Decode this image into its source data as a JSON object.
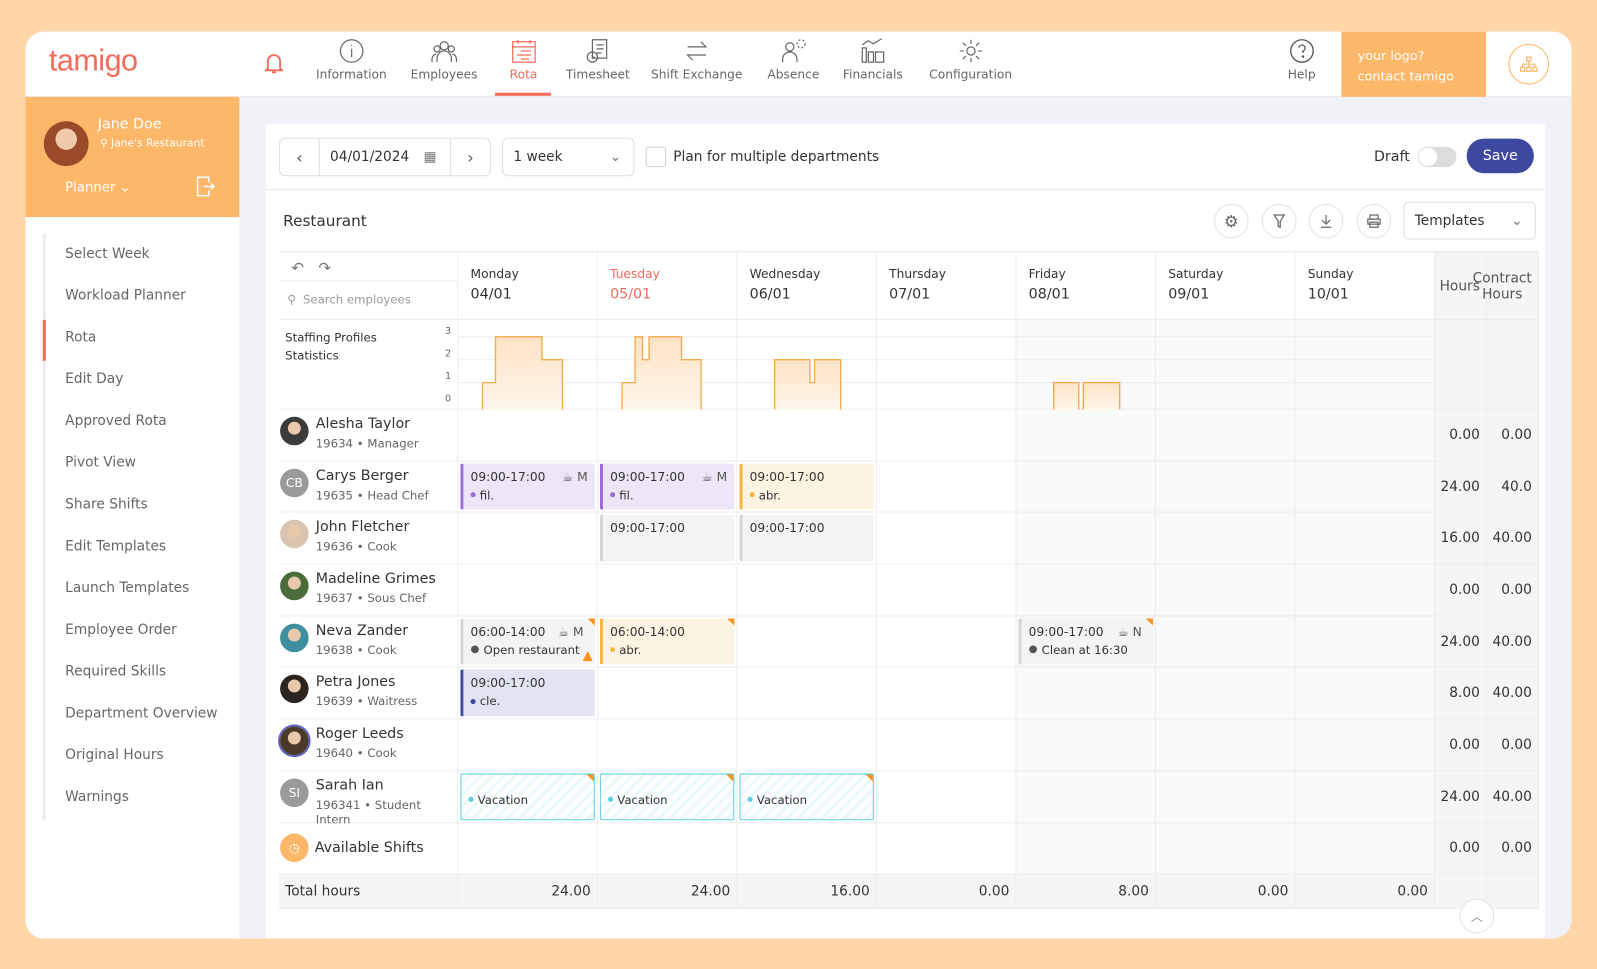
{
  "app": {
    "logo": "tamigo",
    "logo_box": [
      "your logo?",
      "contact tamigo"
    ]
  },
  "nav": [
    {
      "label": "Information",
      "icon": "info-icon"
    },
    {
      "label": "Employees",
      "icon": "employees-icon"
    },
    {
      "label": "Rota",
      "icon": "rota-icon",
      "active": true
    },
    {
      "label": "Timesheet",
      "icon": "timesheet-icon"
    },
    {
      "label": "Shift Exchange",
      "icon": "shift-exchange-icon"
    },
    {
      "label": "Absence",
      "icon": "absence-icon"
    },
    {
      "label": "Financials",
      "icon": "financials-icon"
    },
    {
      "label": "Configuration",
      "icon": "gear-icon"
    }
  ],
  "help": "Help",
  "user": {
    "name": "Jane Doe",
    "location": "Jane's Restaurant",
    "role_menu": "Planner"
  },
  "menu": [
    "Select Week",
    "Workload Planner",
    "Rota",
    "Edit Day",
    "Approved Rota",
    "Pivot View",
    "Share Shifts",
    "Edit Templates",
    "Launch Templates",
    "Employee Order",
    "Required Skills",
    "Department Overview",
    "Original Hours",
    "Warnings"
  ],
  "menu_active": "Rota",
  "toolbar": {
    "date": "04/01/2024",
    "period": "1 week",
    "multi_label": "Plan for multiple departments",
    "multi_checked": false,
    "draft_label": "Draft",
    "draft_on": false,
    "save": "Save"
  },
  "department": "Restaurant",
  "templates": "Templates",
  "search_placeholder": "Search employees",
  "days": [
    {
      "name": "Monday",
      "date": "04/01"
    },
    {
      "name": "Tuesday",
      "date": "05/01",
      "today": true
    },
    {
      "name": "Wednesday",
      "date": "06/01"
    },
    {
      "name": "Thursday",
      "date": "07/01"
    },
    {
      "name": "Friday",
      "date": "08/01"
    },
    {
      "name": "Saturday",
      "date": "09/01"
    },
    {
      "name": "Sunday",
      "date": "10/01"
    }
  ],
  "hours_header": "Hours",
  "contract_header": "Contract Hours",
  "chart_data": {
    "type": "area",
    "title": "Staffing Profiles Statistics",
    "ylim": [
      0,
      3
    ],
    "yticks": [
      "3",
      "2",
      "1",
      "0"
    ],
    "color": "#f7a94a",
    "series": [
      {
        "day": "Monday",
        "steps": [
          [
            6.6,
            8,
            1
          ],
          [
            8,
            13,
            3
          ],
          [
            13,
            15.2,
            2
          ]
        ]
      },
      {
        "day": "Tuesday",
        "steps": [
          [
            6.6,
            8,
            1
          ],
          [
            8,
            8.8,
            3
          ],
          [
            8.8,
            9.5,
            2
          ],
          [
            9.5,
            13,
            3
          ],
          [
            13,
            15.1,
            2
          ]
        ]
      },
      {
        "day": "Wednesday",
        "steps": [
          [
            8,
            11.8,
            2
          ],
          [
            11.8,
            12.3,
            1
          ],
          [
            12.3,
            15.1,
            2
          ]
        ]
      },
      {
        "day": "Thursday",
        "steps": []
      },
      {
        "day": "Friday",
        "steps": [
          [
            8,
            10.7,
            1
          ],
          [
            11.2,
            15.1,
            1
          ]
        ]
      },
      {
        "day": "Saturday",
        "steps": []
      },
      {
        "day": "Sunday",
        "steps": []
      }
    ]
  },
  "employees": [
    {
      "name": "Alesha Taylor",
      "sub": "19634 • Manager",
      "avatar": "photo",
      "hours": "0.00",
      "contract": "0.00",
      "shifts": []
    },
    {
      "name": "Carys Berger",
      "sub": "19635 • Head Chef",
      "avatar": "CB",
      "hours": "24.00",
      "contract": "40.0",
      "shifts": [
        {
          "day": 0,
          "time": "09:00-17:00",
          "tag": "M",
          "note": "fil.",
          "kind": "purple"
        },
        {
          "day": 1,
          "time": "09:00-17:00",
          "tag": "M",
          "note": "fil.",
          "kind": "purple"
        },
        {
          "day": 2,
          "time": "09:00-17:00",
          "note": "abr.",
          "kind": "orange"
        }
      ]
    },
    {
      "name": "John Fletcher",
      "sub": "19636 • Cook",
      "avatar": "photo",
      "hours": "16.00",
      "contract": "40.00",
      "shifts": [
        {
          "day": 1,
          "time": "09:00-17:00",
          "kind": "grey"
        },
        {
          "day": 2,
          "time": "09:00-17:00",
          "kind": "grey"
        }
      ]
    },
    {
      "name": "Madeline Grimes",
      "sub": "19637 • Sous Chef",
      "avatar": "photo",
      "hours": "0.00",
      "contract": "0.00",
      "shifts": []
    },
    {
      "name": "Neva Zander",
      "sub": "19638 • Cook",
      "avatar": "photo",
      "hours": "24.00",
      "contract": "40.00",
      "shifts": [
        {
          "day": 0,
          "time": "06:00-14:00",
          "tag": "M",
          "comment": "Open restaurant",
          "kind": "grey",
          "flag": true,
          "warning": true
        },
        {
          "day": 1,
          "time": "06:00-14:00",
          "note": "abr.",
          "kind": "orange",
          "flag": true
        },
        {
          "day": 4,
          "time": "09:00-17:00",
          "tag": "N",
          "comment": "Clean at 16:30",
          "kind": "grey",
          "flag": true
        }
      ]
    },
    {
      "name": "Petra Jones",
      "sub": "19639 • Waitress",
      "avatar": "photo",
      "hours": "8.00",
      "contract": "40.00",
      "shifts": [
        {
          "day": 0,
          "time": "09:00-17:00",
          "note": "cle.",
          "kind": "navy"
        }
      ]
    },
    {
      "name": "Roger Leeds",
      "sub": "19640 • Cook",
      "avatar": "photo",
      "hours": "0.00",
      "contract": "0.00",
      "shifts": []
    },
    {
      "name": "Sarah Ian",
      "sub": "196341 • Student Intern",
      "avatar": "SI",
      "hours": "24.00",
      "contract": "40.00",
      "shifts": [
        {
          "day": 0,
          "note": "Vacation",
          "kind": "vacation",
          "flag": true
        },
        {
          "day": 1,
          "note": "Vacation",
          "kind": "vacation",
          "flag": true
        },
        {
          "day": 2,
          "note": "Vacation",
          "kind": "vacation",
          "flag": true
        }
      ]
    }
  ],
  "available": {
    "label": "Available Shifts",
    "hours": "0.00",
    "contract": "0.00"
  },
  "totals": {
    "label": "Total hours",
    "values": [
      "24.00",
      "24.00",
      "16.00",
      "0.00",
      "8.00",
      "0.00",
      "0.00"
    ]
  },
  "colors": {
    "brand": "#f26b5b",
    "accent": "#fdb768",
    "save": "#3d49a0",
    "purple": "#9b6ad6",
    "orange": "#f5b642",
    "navy": "#3d49a0",
    "vacation": "#5fd0e0"
  }
}
